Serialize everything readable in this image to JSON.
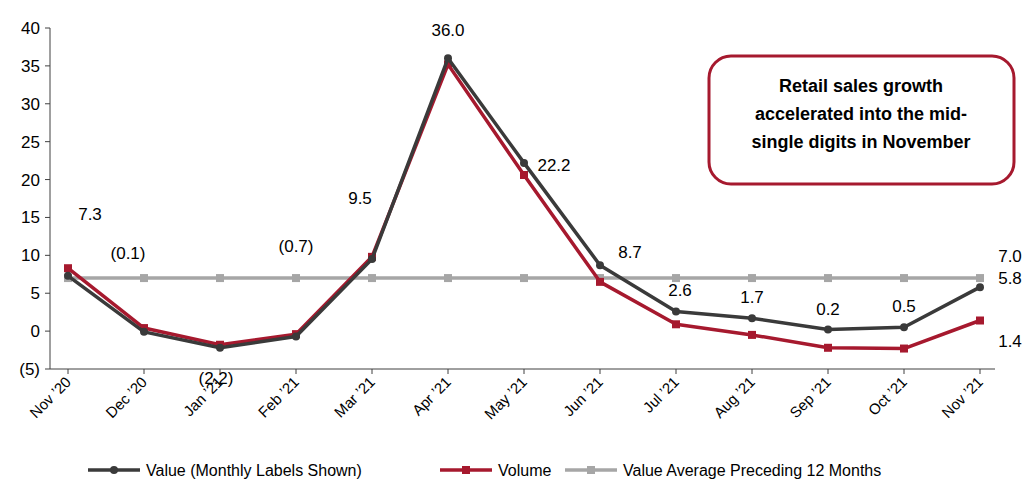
{
  "chart_data": {
    "type": "line",
    "categories": [
      "Nov ’20",
      "Dec ’20",
      "Jan ’21",
      "Feb ’21",
      "Mar ’21",
      "Apr ’21",
      "May ’21",
      "Jun ’21",
      "Jul ’21",
      "Aug ’21",
      "Sep ’21",
      "Oct ’21",
      "Nov ’21"
    ],
    "series": [
      {
        "name": "Value (Monthly Labels Shown)",
        "color": "#3a3a3a",
        "marker": "circle",
        "values": [
          7.3,
          -0.1,
          -2.2,
          -0.7,
          9.5,
          36.0,
          22.2,
          8.7,
          2.6,
          1.7,
          0.2,
          0.5,
          5.8
        ],
        "value_labels": [
          "7.3",
          "(0.1)",
          "(2.2)",
          "(0.7)",
          "9.5",
          "36.0",
          "22.2",
          "8.7",
          "2.6",
          "1.7",
          "0.2",
          "0.5",
          "5.8"
        ]
      },
      {
        "name": "Volume",
        "color": "#a6192e",
        "marker": "square",
        "values": [
          8.3,
          0.4,
          -1.8,
          -0.4,
          9.8,
          35.2,
          20.6,
          6.5,
          0.9,
          -0.5,
          -2.2,
          -2.3,
          1.4
        ],
        "value_labels": [
          null,
          null,
          null,
          null,
          null,
          null,
          null,
          null,
          null,
          null,
          null,
          null,
          "1.4"
        ]
      },
      {
        "name": "Value Average Preceding 12 Months",
        "color": "#a6a6a6",
        "marker": "square",
        "values": [
          7.0,
          7.0,
          7.0,
          7.0,
          7.0,
          7.0,
          7.0,
          7.0,
          7.0,
          7.0,
          7.0,
          7.0,
          7.0
        ],
        "value_labels": [
          null,
          null,
          null,
          null,
          null,
          null,
          null,
          null,
          null,
          null,
          null,
          null,
          "7.0"
        ]
      }
    ],
    "ylim": [
      -5,
      40
    ],
    "yticks": [
      {
        "value": -5,
        "label": "(5)"
      },
      0,
      5,
      10,
      15,
      20,
      25,
      30,
      35,
      40
    ],
    "grid": false,
    "data_labels": true,
    "legend": "bottom",
    "annotation": [
      "Retail sales growth",
      "accelerated into the mid-",
      "single digits in November"
    ]
  }
}
